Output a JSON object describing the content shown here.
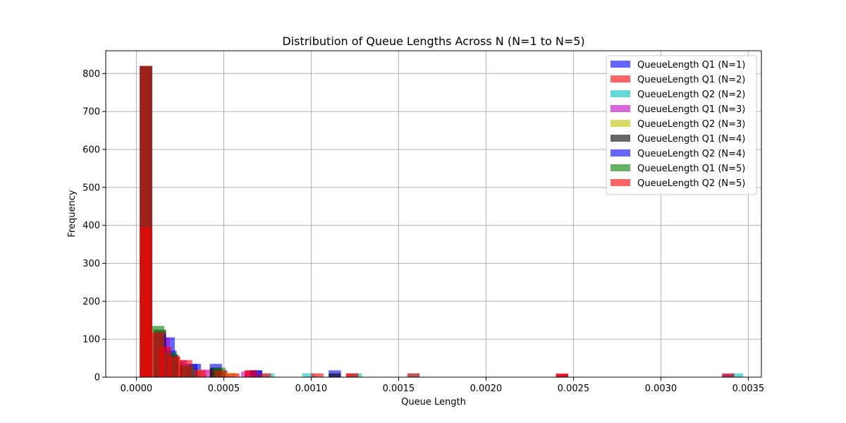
{
  "chart_data": {
    "type": "bar",
    "title": "Distribution of Queue Lengths Across N (N=1 to N=5)",
    "xlabel": "Queue Length",
    "ylabel": "Frequency",
    "xlim": [
      -0.000175,
      0.003575
    ],
    "ylim": [
      0,
      860
    ],
    "xticks": [
      0.0,
      0.0005,
      0.001,
      0.0015,
      0.002,
      0.0025,
      0.003,
      0.0035
    ],
    "xtick_labels": [
      "0.0000",
      "0.0005",
      "0.0010",
      "0.0015",
      "0.0020",
      "0.0025",
      "0.0030",
      "0.0035"
    ],
    "yticks": [
      0,
      100,
      200,
      300,
      400,
      500,
      600,
      700,
      800
    ],
    "ytick_labels": [
      "0",
      "100",
      "200",
      "300",
      "400",
      "500",
      "600",
      "700",
      "800"
    ],
    "grid": true,
    "legend_position": "top-right",
    "bin_width": 7e-05,
    "series": [
      {
        "name": "QueueLength Q1 (N=1)",
        "color": "#0000ff",
        "opacity": 0.6,
        "bins": [
          {
            "x": 2e-05,
            "y": 820
          },
          {
            "x": 0.0001,
            "y": 100
          },
          {
            "x": 0.00015,
            "y": 105
          },
          {
            "x": 0.0002,
            "y": 40
          },
          {
            "x": 0.0003,
            "y": 35
          },
          {
            "x": 0.00042,
            "y": 35
          },
          {
            "x": 0.00065,
            "y": 18
          },
          {
            "x": 0.0011,
            "y": 18
          },
          {
            "x": 0.0024,
            "y": 8
          },
          {
            "x": 0.00335,
            "y": 8
          }
        ]
      },
      {
        "name": "QueueLength Q1 (N=2)",
        "color": "#ff0000",
        "opacity": 0.6,
        "bins": [
          {
            "x": 2e-05,
            "y": 820
          },
          {
            "x": 0.0001,
            "y": 110
          },
          {
            "x": 0.00018,
            "y": 55
          },
          {
            "x": 0.00028,
            "y": 25
          },
          {
            "x": 0.00042,
            "y": 18
          },
          {
            "x": 0.00062,
            "y": 18
          },
          {
            "x": 0.0012,
            "y": 10
          },
          {
            "x": 0.0024,
            "y": 8
          }
        ]
      },
      {
        "name": "QueueLength Q2 (N=2)",
        "color": "#00bfbf",
        "opacity": 0.6,
        "bins": [
          {
            "x": 2e-05,
            "y": 820
          },
          {
            "x": 0.0001,
            "y": 90
          },
          {
            "x": 0.0002,
            "y": 40
          },
          {
            "x": 0.00045,
            "y": 18
          },
          {
            "x": 0.00072,
            "y": 10
          },
          {
            "x": 0.00095,
            "y": 10
          },
          {
            "x": 0.00122,
            "y": 10
          },
          {
            "x": 0.00155,
            "y": 10
          },
          {
            "x": 0.0034,
            "y": 10
          }
        ]
      },
      {
        "name": "QueueLength Q1 (N=3)",
        "color": "#bf00bf",
        "opacity": 0.6,
        "bins": [
          {
            "x": 2e-05,
            "y": 820
          },
          {
            "x": 0.00012,
            "y": 105
          },
          {
            "x": 0.00022,
            "y": 45
          },
          {
            "x": 0.00035,
            "y": 20
          },
          {
            "x": 0.0006,
            "y": 15
          }
        ]
      },
      {
        "name": "QueueLength Q2 (N=3)",
        "color": "#bfbf00",
        "opacity": 0.6,
        "bins": [
          {
            "x": 2e-05,
            "y": 820
          },
          {
            "x": 0.0001,
            "y": 120
          },
          {
            "x": 0.00018,
            "y": 50
          },
          {
            "x": 0.0003,
            "y": 20
          },
          {
            "x": 0.0005,
            "y": 12
          }
        ]
      },
      {
        "name": "QueueLength Q1 (N=4)",
        "color": "#000000",
        "opacity": 0.6,
        "bins": [
          {
            "x": 2e-05,
            "y": 820
          },
          {
            "x": 0.0001,
            "y": 125
          },
          {
            "x": 0.00017,
            "y": 60
          },
          {
            "x": 0.00025,
            "y": 30
          },
          {
            "x": 0.00042,
            "y": 25
          },
          {
            "x": 0.0011,
            "y": 10
          }
        ]
      },
      {
        "name": "QueueLength Q2 (N=4)",
        "color": "#0000ff",
        "opacity": 0.6,
        "bins": [
          {
            "x": 2e-05,
            "y": 820
          },
          {
            "x": 0.0001,
            "y": 115
          },
          {
            "x": 0.00016,
            "y": 70
          },
          {
            "x": 0.00028,
            "y": 35
          },
          {
            "x": 0.00065,
            "y": 18
          }
        ]
      },
      {
        "name": "QueueLength Q1 (N=5)",
        "color": "#008000",
        "opacity": 0.6,
        "bins": [
          {
            "x": 2e-05,
            "y": 820
          },
          {
            "x": 9e-05,
            "y": 135
          },
          {
            "x": 0.00016,
            "y": 65
          },
          {
            "x": 0.00026,
            "y": 30
          },
          {
            "x": 0.00044,
            "y": 25
          }
        ]
      },
      {
        "name": "QueueLength Q2 (N=5)",
        "color": "#ff0000",
        "opacity": 0.6,
        "bins": [
          {
            "x": 2e-05,
            "y": 820
          },
          {
            "x": 2e-05,
            "y": 395
          },
          {
            "x": 9e-05,
            "y": 118
          },
          {
            "x": 0.00013,
            "y": 80
          },
          {
            "x": 0.00018,
            "y": 55
          },
          {
            "x": 0.00025,
            "y": 45
          },
          {
            "x": 0.00033,
            "y": 18
          },
          {
            "x": 0.00045,
            "y": 18
          },
          {
            "x": 0.00052,
            "y": 10
          },
          {
            "x": 0.00062,
            "y": 18
          },
          {
            "x": 0.0007,
            "y": 10
          },
          {
            "x": 0.001,
            "y": 10
          },
          {
            "x": 0.0012,
            "y": 10
          },
          {
            "x": 0.00155,
            "y": 10
          },
          {
            "x": 0.0024,
            "y": 10
          },
          {
            "x": 0.00335,
            "y": 10
          }
        ]
      }
    ]
  }
}
